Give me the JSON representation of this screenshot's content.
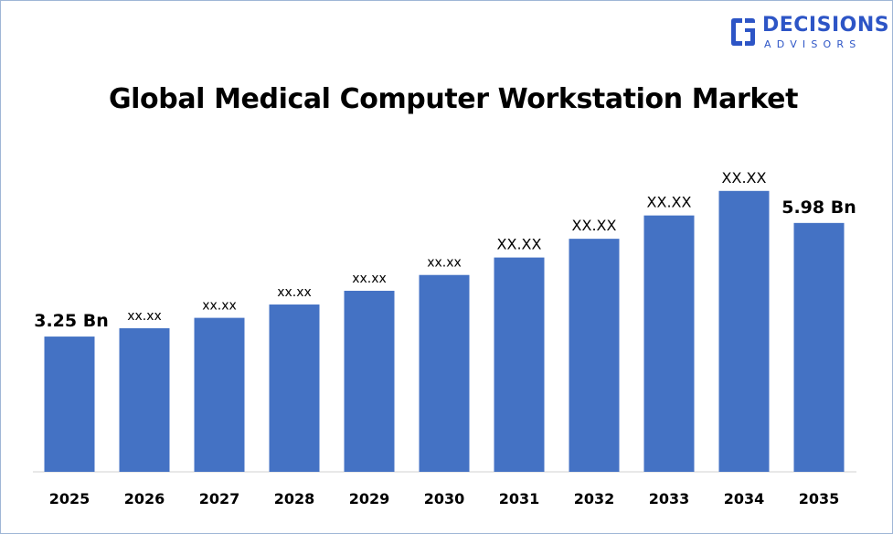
{
  "logo": {
    "word": "DECISIONS",
    "sub": "ADVISORS",
    "color": "#2d55c6",
    "icon": "decisions-advisors-logo-icon"
  },
  "chart_data": {
    "type": "bar",
    "title": "Global Medical Computer Workstation Market",
    "xlabel": "",
    "ylabel": "",
    "categories": [
      "2025",
      "2026",
      "2027",
      "2028",
      "2029",
      "2030",
      "2031",
      "2032",
      "2033",
      "2034",
      "2035"
    ],
    "values": [
      3.25,
      3.45,
      3.7,
      4.02,
      4.35,
      4.73,
      5.15,
      5.6,
      6.16,
      6.75,
      5.98
    ],
    "data_labels": [
      "3.25 Bn",
      "xx.xx",
      "xx.xx",
      "xx.xx",
      "xx.xx",
      "xx.xx",
      "XX.XX",
      "XX.XX",
      "XX.XX",
      "XX.XX",
      "5.98 Bn"
    ],
    "ylim": [
      0,
      7.8
    ],
    "bar_color": "#4472c4",
    "grid": false,
    "legend": "none"
  }
}
